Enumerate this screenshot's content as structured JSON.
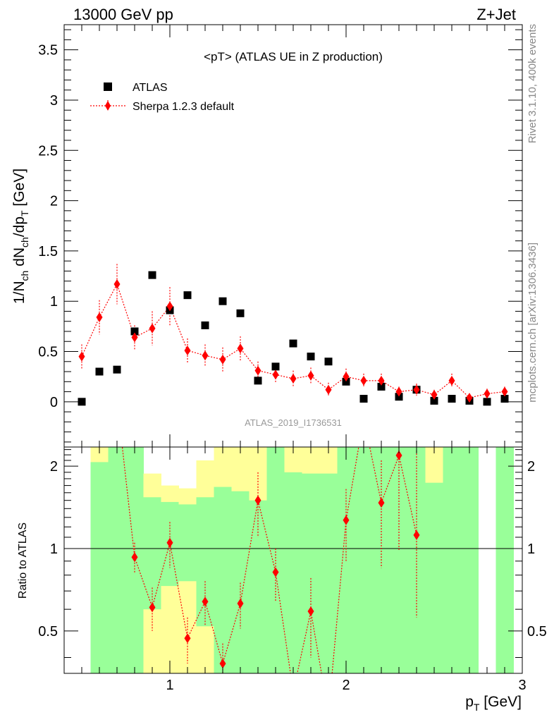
{
  "header": {
    "left": "13000 GeV pp",
    "right": "Z+Jet"
  },
  "side_labels": {
    "rivet": "Rivet 3.1.10,  400k events",
    "mcplots": "mcplots.cern.ch [arXiv:1306.3436]"
  },
  "colors": {
    "data": "#000000",
    "mc": "#ff0000",
    "band_inner": "#99ff99",
    "band_outer": "#ffff99"
  },
  "chart_data": [
    {
      "type": "scatter",
      "panel": "main",
      "title": "<pT> (ATLAS UE in Z production)",
      "ylabel": "1/N_ch dN_ch/dp_T [GeV]",
      "xlim": [
        0.4,
        3.0
      ],
      "ylim": [
        -0.45,
        3.75
      ],
      "grid": false,
      "legend_position": "top-left",
      "analysis_label": "ATLAS_2019_I1736531",
      "x_ticks": [
        "1",
        "2",
        "3"
      ],
      "y_ticks": [
        "0",
        "0.5",
        "1",
        "1.5",
        "2",
        "2.5",
        "3",
        "3.5"
      ],
      "series": [
        {
          "name": "ATLAS",
          "x": [
            0.5,
            0.6,
            0.7,
            0.8,
            0.9,
            1.0,
            1.1,
            1.2,
            1.3,
            1.4,
            1.5,
            1.6,
            1.7,
            1.8,
            1.9,
            2.0,
            2.1,
            2.2,
            2.3,
            2.4,
            2.5,
            2.6,
            2.7,
            2.8,
            2.9
          ],
          "y": [
            0.0,
            0.3,
            0.32,
            0.7,
            1.26,
            0.91,
            1.06,
            0.76,
            1.0,
            0.88,
            0.21,
            0.35,
            0.58,
            0.45,
            0.4,
            0.2,
            0.03,
            0.15,
            0.05,
            0.12,
            0.01,
            0.03,
            0.01,
            0.0,
            0.03
          ]
        },
        {
          "name": "Sherpa 1.2.3 default",
          "x": [
            0.5,
            0.6,
            0.7,
            0.8,
            0.9,
            1.0,
            1.1,
            1.2,
            1.3,
            1.4,
            1.5,
            1.6,
            1.7,
            1.8,
            1.9,
            2.0,
            2.1,
            2.2,
            2.3,
            2.4,
            2.5,
            2.6,
            2.7,
            2.8,
            2.9
          ],
          "y": [
            0.45,
            0.84,
            1.17,
            0.64,
            0.73,
            0.95,
            0.51,
            0.46,
            0.42,
            0.53,
            0.31,
            0.27,
            0.23,
            0.26,
            0.12,
            0.25,
            0.21,
            0.21,
            0.1,
            0.12,
            0.07,
            0.21,
            0.04,
            0.08,
            0.1
          ],
          "yerr": [
            0.12,
            0.17,
            0.2,
            0.12,
            0.17,
            0.19,
            0.12,
            0.11,
            0.12,
            0.12,
            0.09,
            0.08,
            0.08,
            0.08,
            0.07,
            0.08,
            0.07,
            0.07,
            0.05,
            0.06,
            0.05,
            0.07,
            0.04,
            0.05,
            0.05
          ]
        }
      ]
    },
    {
      "type": "line",
      "panel": "ratio",
      "ylabel": "Ratio to ATLAS",
      "xlabel": "p_T [GeV]",
      "xlim": [
        0.4,
        3.0
      ],
      "ylim": [
        0.35,
        2.35
      ],
      "reference_line": 1.0,
      "x_ticks": [
        "1",
        "2",
        "3"
      ],
      "y_ticks": [
        "0.5",
        "1",
        "2"
      ],
      "uncertainty_bands": {
        "bin_edges": [
          0.55,
          0.65,
          0.75,
          0.85,
          0.95,
          1.05,
          1.15,
          1.25,
          1.35,
          1.45,
          1.55,
          1.65,
          1.75,
          1.85,
          1.95,
          2.05,
          2.15,
          2.25,
          2.35,
          2.45,
          2.55,
          2.65,
          2.75,
          2.85,
          2.95
        ],
        "inner_low": [
          0.35,
          0.35,
          0.35,
          0.6,
          0.73,
          0.76,
          0.52,
          0.35,
          0.35,
          0.35,
          0.35,
          0.35,
          0.35,
          0.35,
          0.35,
          0.35,
          0.35,
          0.35,
          0.35,
          0.35,
          0.35,
          0.35,
          null,
          0.35
        ],
        "inner_high": [
          2.07,
          2.35,
          2.35,
          1.54,
          1.48,
          1.45,
          1.54,
          1.68,
          1.62,
          1.5,
          2.35,
          1.9,
          1.88,
          1.88,
          2.35,
          2.35,
          2.35,
          2.35,
          2.35,
          1.74,
          2.35,
          2.35,
          null,
          2.35
        ],
        "outer_low": [
          0.35,
          0.35,
          0.35,
          0.35,
          0.35,
          0.35,
          0.35,
          0.35,
          0.35,
          0.35,
          0.35,
          0.35,
          0.35,
          0.35,
          0.35,
          0.35,
          0.35,
          0.35,
          0.35,
          0.35,
          0.35,
          0.35,
          null,
          0.35
        ],
        "outer_high": [
          2.35,
          2.35,
          2.35,
          1.88,
          1.7,
          1.66,
          2.1,
          2.35,
          2.35,
          2.35,
          2.35,
          2.35,
          2.35,
          2.35,
          2.35,
          2.35,
          2.35,
          2.35,
          2.35,
          2.35,
          2.35,
          2.35,
          null,
          2.35
        ]
      },
      "series": [
        {
          "name": "Sherpa 1.2.3 default",
          "x": [
            0.8,
            0.9,
            1.0,
            1.1,
            1.2,
            1.3,
            1.4,
            1.5,
            1.6,
            1.8,
            2.0,
            2.2,
            2.3,
            2.4
          ],
          "y": [
            0.93,
            0.61,
            1.05,
            0.47,
            0.64,
            0.38,
            0.63,
            1.5,
            0.82,
            0.59,
            1.27,
            1.47,
            2.19,
            1.12
          ],
          "ylow": [
            0.81,
            0.5,
            0.85,
            0.38,
            0.52,
            0.31,
            0.51,
            1.1,
            0.64,
            0.4,
            0.9,
            0.85,
            0.98,
            0.56
          ],
          "yhigh": [
            1.05,
            0.72,
            1.25,
            0.56,
            0.76,
            0.45,
            0.75,
            1.9,
            1.0,
            0.78,
            1.65,
            2.1,
            2.35,
            2.28
          ]
        }
      ]
    }
  ]
}
